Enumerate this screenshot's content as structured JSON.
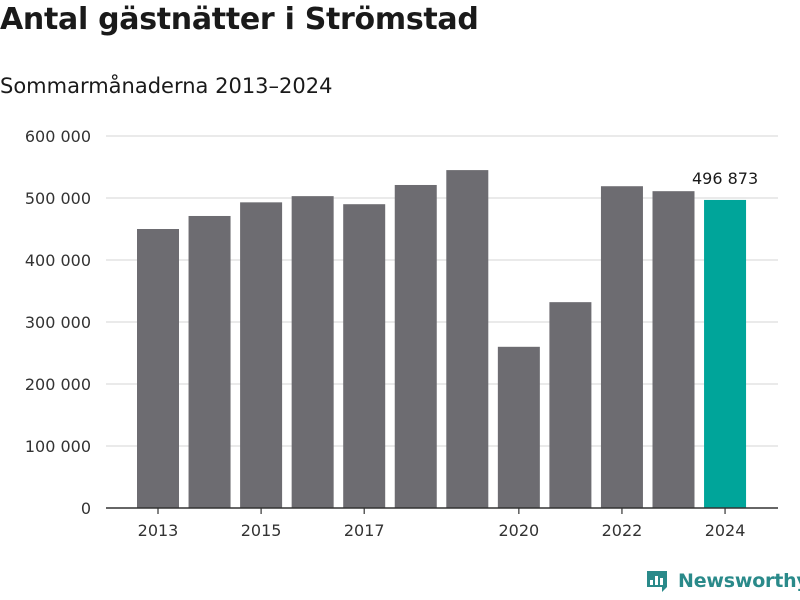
{
  "chart_data": {
    "type": "bar",
    "title": "Antal gästnätter i Strömstad",
    "subtitle": "Sommarmånaderna 2013–2024",
    "categories": [
      "2013",
      "2014",
      "2015",
      "2016",
      "2017",
      "2018",
      "2019",
      "2020",
      "2021",
      "2022",
      "2023",
      "2024"
    ],
    "values": [
      450000,
      471000,
      493000,
      503000,
      490000,
      521000,
      545000,
      260000,
      332000,
      519000,
      511000,
      496873
    ],
    "x_tick_labels": [
      "2013",
      "",
      "2015",
      "",
      "2017",
      "",
      "",
      "2020",
      "",
      "2022",
      "",
      "2024"
    ],
    "ylim": [
      0,
      600000
    ],
    "y_ticks": [
      0,
      100000,
      200000,
      300000,
      400000,
      500000,
      600000
    ],
    "y_tick_labels": [
      "0",
      "100 000",
      "200 000",
      "300 000",
      "400 000",
      "500 000",
      "600 000"
    ],
    "xlabel": "",
    "ylabel": "",
    "grid": true,
    "highlight_index": 11,
    "annotation": "496 873",
    "colors": {
      "bar": "#6d6c71",
      "highlight": "#00a59a",
      "grid": "#dddddd",
      "axis": "#333333",
      "text": "#333333"
    }
  },
  "brand": {
    "name": "Newsworthy",
    "icon": "newsworthy-logo-icon",
    "color": "#2a8a8a"
  }
}
